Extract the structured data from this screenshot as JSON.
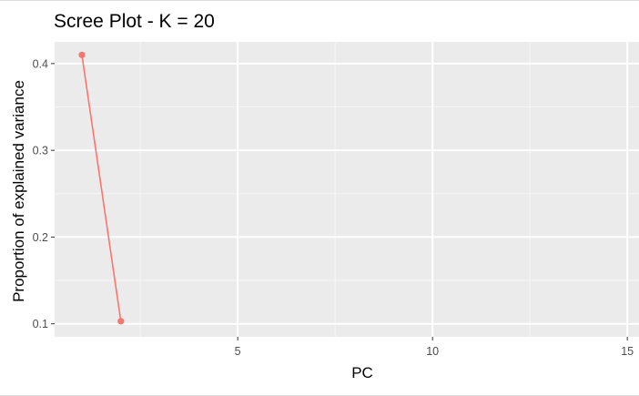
{
  "chart_data": {
    "type": "line",
    "title": "Scree Plot - K = 20",
    "xlabel": "PC",
    "ylabel": "Proportion of explained variance",
    "xlim": [
      0.3,
      15.3
    ],
    "ylim": [
      0.085,
      0.425
    ],
    "xticks": [
      5,
      10,
      15
    ],
    "xtick_labels": [
      "5",
      "10",
      "15"
    ],
    "yticks": [
      0.1,
      0.2,
      0.3,
      0.4
    ],
    "ytick_labels": [
      "0.1",
      "0.2",
      "0.3",
      "0.4"
    ],
    "grid": true,
    "legend": "none",
    "series": [
      {
        "x": [
          1,
          2
        ],
        "y": [
          0.41,
          0.103
        ],
        "color": "#F8766D"
      }
    ]
  },
  "colors": {
    "panel_background": "#EBEBEB",
    "grid_major": "#FFFFFF",
    "grid_minor": "#F5F5F5",
    "tick_color": "#333333"
  }
}
